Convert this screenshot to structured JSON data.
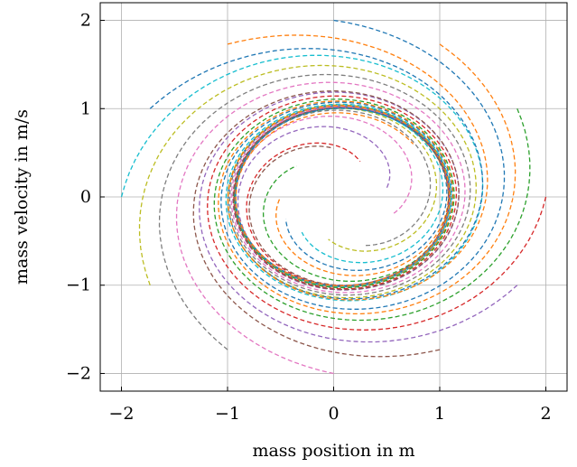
{
  "chart_data": {
    "type": "line",
    "title": "",
    "xlabel": "mass position in m",
    "ylabel": "mass velocity in m/s",
    "xlim": [
      -2.2,
      2.2
    ],
    "ylim": [
      -2.2,
      2.2
    ],
    "xticks": [
      -2,
      -1,
      0,
      1,
      2
    ],
    "yticks": [
      -2,
      -1,
      0,
      1,
      2
    ],
    "xtick_labels": [
      "−2",
      "−1",
      "0",
      "1",
      "2"
    ],
    "ytick_labels": [
      "−2",
      "−1",
      "0",
      "1",
      "2"
    ],
    "grid": true,
    "line_style": "dashed",
    "limit_cycle_radius": 1.0,
    "limit_cycle_center": [
      0.08,
      0.0
    ],
    "series": [
      {
        "color": "#1f77b4",
        "initial_state": [
          0.0,
          2.0
        ],
        "end_state": [
          -0.45,
          -0.25
        ]
      },
      {
        "color": "#ff7f0e",
        "initial_state": [
          1.0,
          1.73
        ],
        "end_state": [
          -0.5,
          0.0
        ]
      },
      {
        "color": "#2ca02c",
        "initial_state": [
          1.73,
          1.0
        ],
        "end_state": [
          -0.35,
          0.35
        ]
      },
      {
        "color": "#d62728",
        "initial_state": [
          2.0,
          0.0
        ],
        "end_state": [
          0.25,
          0.4
        ]
      },
      {
        "color": "#9467bd",
        "initial_state": [
          1.73,
          -1.0
        ],
        "end_state": [
          0.5,
          0.1
        ]
      },
      {
        "color": "#8c564b",
        "initial_state": [
          1.0,
          -1.73
        ],
        "end_state": [
          0.0,
          0.55
        ]
      },
      {
        "color": "#e377c2",
        "initial_state": [
          0.0,
          -2.0
        ],
        "end_state": [
          0.55,
          -0.2
        ]
      },
      {
        "color": "#7f7f7f",
        "initial_state": [
          -1.0,
          -1.73
        ],
        "end_state": [
          0.3,
          -0.55
        ]
      },
      {
        "color": "#bcbd22",
        "initial_state": [
          -1.73,
          -1.0
        ],
        "end_state": [
          -0.05,
          -0.48
        ]
      },
      {
        "color": "#17becf",
        "initial_state": [
          -2.0,
          0.0
        ],
        "end_state": [
          -0.3,
          -0.4
        ]
      },
      {
        "color": "#1f77b4",
        "initial_state": [
          -1.73,
          1.0
        ],
        "end_state": [
          1.1,
          0.05
        ]
      },
      {
        "color": "#ff7f0e",
        "initial_state": [
          -1.0,
          1.73
        ],
        "end_state": [
          0.75,
          0.6
        ]
      }
    ]
  }
}
